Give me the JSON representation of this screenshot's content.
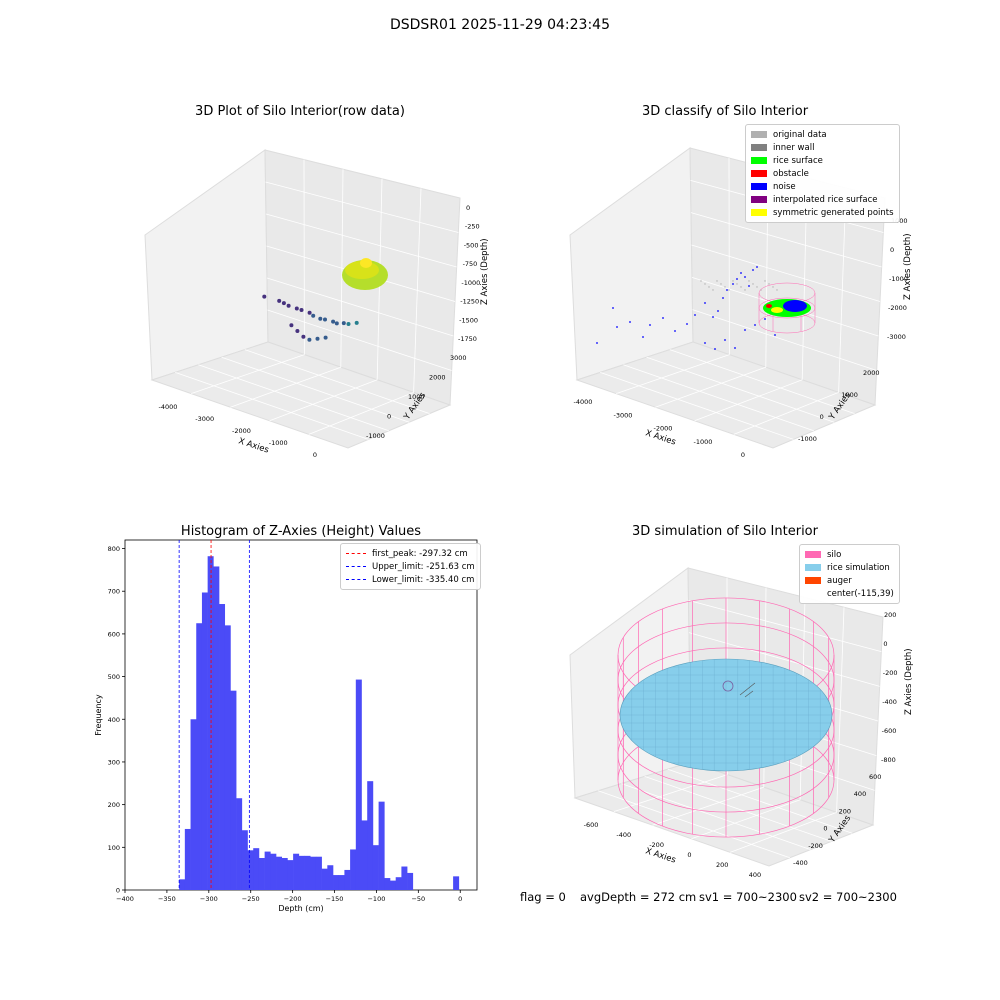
{
  "figure": {
    "suptitle": "DSDSR01 2025-11-29 04:23:45"
  },
  "footer": {
    "flag": "flag = 0",
    "avg_depth": "avgDepth = 272 cm",
    "sv1": "sv1 = 700~2300",
    "sv2": "sv2 = 700~2300"
  },
  "chart_data": [
    {
      "id": "raw",
      "type": "scatter",
      "title": "3D Plot of Silo Interior(row data)",
      "xlabel": "X Axies",
      "ylabel": "Y Axies",
      "zlabel": "Z Axies (Depth)",
      "xticks": [
        "-4000",
        "-3000",
        "-2000",
        "-1000",
        "0"
      ],
      "yticks": [
        "-1000",
        "0",
        "1000",
        "2000",
        "3000"
      ],
      "zticks": [
        "0",
        "-250",
        "-500",
        "-750",
        "-1000",
        "-1250",
        "-1500",
        "-1750"
      ],
      "colormap": "viridis",
      "points": [
        {
          "x": -4200,
          "y": 2900,
          "z": -1700
        },
        {
          "x": -3700,
          "y": 2800,
          "z": -1650
        },
        {
          "x": -3500,
          "y": 2700,
          "z": -1620
        },
        {
          "x": -3300,
          "y": 2600,
          "z": -1600
        },
        {
          "x": -3000,
          "y": 2500,
          "z": -1560
        },
        {
          "x": -2800,
          "y": 2400,
          "z": -1520
        },
        {
          "x": -2500,
          "y": 2300,
          "z": -1480
        },
        {
          "x": -2300,
          "y": 2150,
          "z": -1450
        },
        {
          "x": -2000,
          "y": 2000,
          "z": -1400
        },
        {
          "x": -1800,
          "y": 1900,
          "z": -1350
        },
        {
          "x": -1500,
          "y": 1800,
          "z": -1300
        },
        {
          "x": -1300,
          "y": 1650,
          "z": -1250
        },
        {
          "x": -1000,
          "y": 1500,
          "z": -1150
        },
        {
          "x": -800,
          "y": 1400,
          "z": -1100
        },
        {
          "x": -500,
          "y": 1300,
          "z": -1000
        },
        {
          "x": -2600,
          "y": 1600,
          "z": -1500
        },
        {
          "x": -2300,
          "y": 1400,
          "z": -1480
        },
        {
          "x": -2000,
          "y": 1200,
          "z": -1460
        },
        {
          "x": -1700,
          "y": 1000,
          "z": -1400
        },
        {
          "x": -1400,
          "y": 900,
          "z": -1300
        },
        {
          "x": -1100,
          "y": 800,
          "z": -1200
        }
      ],
      "surface_cluster": {
        "x": -100,
        "y": 0,
        "z": -300
      }
    },
    {
      "id": "classify",
      "type": "scatter",
      "title": "3D classify of Silo Interior",
      "xlabel": "X Axies",
      "ylabel": "Y Axies",
      "zlabel": "Z Axies (Depth)",
      "xticks": [
        "-4000",
        "-3000",
        "-2000",
        "-1000",
        "0"
      ],
      "yticks": [
        "-1000",
        "0",
        "1000",
        "2000"
      ],
      "zticks": [
        "1000",
        "0",
        "-1000",
        "-2000",
        "-3000"
      ],
      "legend": [
        {
          "label": "original data",
          "color": "#b0b0b0"
        },
        {
          "label": "inner wall",
          "color": "#808080"
        },
        {
          "label": "rice surface",
          "color": "#00ff00"
        },
        {
          "label": "obstacle",
          "color": "#ff0000"
        },
        {
          "label": "noise",
          "color": "#0000ff"
        },
        {
          "label": "interpolated rice surface",
          "color": "#800080"
        },
        {
          "label": "symmetric generated points",
          "color": "#ffff00"
        }
      ]
    },
    {
      "id": "histogram",
      "type": "bar",
      "title": "Histogram of Z-Axies (Height) Values",
      "xlabel": "Depth (cm)",
      "ylabel": "Frequency",
      "xlim": [
        -400,
        20
      ],
      "ylim": [
        0,
        820
      ],
      "xticks": [
        -400,
        -350,
        -300,
        -250,
        -200,
        -150,
        -100,
        -50,
        0
      ],
      "yticks": [
        0,
        100,
        200,
        300,
        400,
        500,
        600,
        700,
        800
      ],
      "bin_width": 6.8,
      "bins": [
        {
          "x": -335.4,
          "value": 25
        },
        {
          "x": -328.6,
          "value": 143
        },
        {
          "x": -321.8,
          "value": 400
        },
        {
          "x": -315.0,
          "value": 625
        },
        {
          "x": -308.2,
          "value": 697
        },
        {
          "x": -301.4,
          "value": 782
        },
        {
          "x": -294.6,
          "value": 758
        },
        {
          "x": -287.8,
          "value": 670
        },
        {
          "x": -281.0,
          "value": 620
        },
        {
          "x": -274.2,
          "value": 467
        },
        {
          "x": -267.4,
          "value": 215
        },
        {
          "x": -260.6,
          "value": 140
        },
        {
          "x": -253.8,
          "value": 93
        },
        {
          "x": -247.0,
          "value": 98
        },
        {
          "x": -240.2,
          "value": 75
        },
        {
          "x": -233.4,
          "value": 90
        },
        {
          "x": -226.6,
          "value": 85
        },
        {
          "x": -219.8,
          "value": 78
        },
        {
          "x": -213.0,
          "value": 75
        },
        {
          "x": -206.2,
          "value": 70
        },
        {
          "x": -199.4,
          "value": 85
        },
        {
          "x": -192.6,
          "value": 80
        },
        {
          "x": -185.8,
          "value": 80
        },
        {
          "x": -179.0,
          "value": 78
        },
        {
          "x": -172.2,
          "value": 78
        },
        {
          "x": -165.4,
          "value": 50
        },
        {
          "x": -158.6,
          "value": 58
        },
        {
          "x": -151.8,
          "value": 35
        },
        {
          "x": -145.0,
          "value": 35
        },
        {
          "x": -138.2,
          "value": 47
        },
        {
          "x": -131.4,
          "value": 95
        },
        {
          "x": -124.6,
          "value": 493
        },
        {
          "x": -117.8,
          "value": 163
        },
        {
          "x": -111.0,
          "value": 255
        },
        {
          "x": -104.2,
          "value": 105
        },
        {
          "x": -97.4,
          "value": 207
        },
        {
          "x": -90.6,
          "value": 28
        },
        {
          "x": -83.8,
          "value": 22
        },
        {
          "x": -77.0,
          "value": 30
        },
        {
          "x": -70.2,
          "value": 55
        },
        {
          "x": -63.4,
          "value": 40
        },
        {
          "x": -8.5,
          "value": 32
        }
      ],
      "legend": [
        {
          "label": "first_peak: -297.32 cm",
          "color": "#ff0000",
          "value": -297.32
        },
        {
          "label": "Upper_limit: -251.63 cm",
          "color": "#0000ff",
          "value": -251.63
        },
        {
          "label": "Lower_limit: -335.40 cm",
          "color": "#0000ff",
          "value": -335.4
        }
      ]
    },
    {
      "id": "simulation",
      "type": "surface",
      "title": "3D simulation of Silo Interior",
      "xlabel": "X Axies",
      "ylabel": "Y Axies",
      "zlabel": "Z Axies (Depth)",
      "xticks": [
        "-600",
        "-400",
        "-200",
        "0",
        "200",
        "400"
      ],
      "yticks": [
        "-400",
        "-200",
        "0",
        "200",
        "400",
        "600"
      ],
      "zticks": [
        "200",
        "0",
        "-200",
        "-400",
        "-600",
        "-800"
      ],
      "legend": [
        {
          "label": "silo",
          "color": "#ff69b4"
        },
        {
          "label": "rice simulation",
          "color": "#87ceeb"
        },
        {
          "label": "auger",
          "color": "#ff4500"
        },
        {
          "label": "center(-115,39)",
          "color": ""
        }
      ]
    }
  ]
}
